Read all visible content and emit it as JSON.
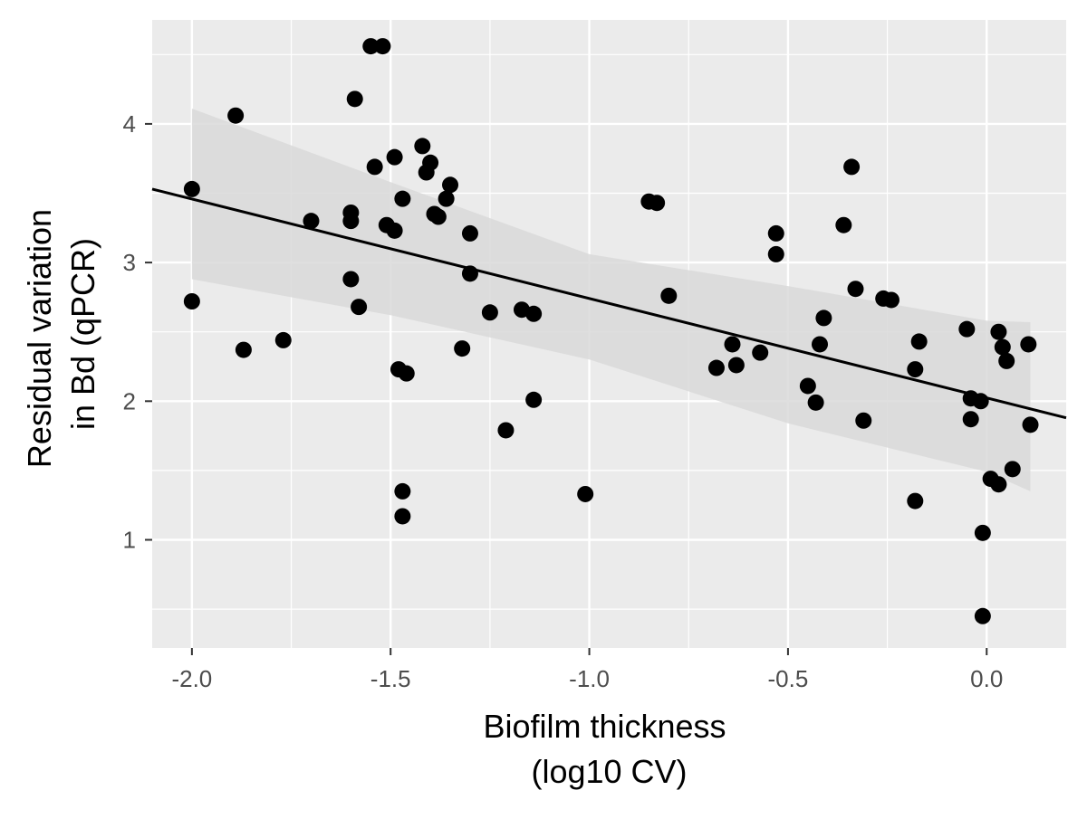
{
  "chart_data": {
    "type": "scatter",
    "xlabel_lines": [
      "Biofilm thickness",
      "(log10 CV)"
    ],
    "ylabel_lines": [
      "Residual variation",
      "in Bd (qPCR)"
    ],
    "xlim": [
      -2.1,
      0.2
    ],
    "ylim": [
      0.22,
      4.75
    ],
    "x_ticks": [
      {
        "value": -2.0,
        "label": "-2.0"
      },
      {
        "value": -1.5,
        "label": "-1.5"
      },
      {
        "value": -1.0,
        "label": "-1.0"
      },
      {
        "value": -0.5,
        "label": "-0.5"
      },
      {
        "value": 0.0,
        "label": "0.0"
      }
    ],
    "y_ticks": [
      {
        "value": 1,
        "label": "1"
      },
      {
        "value": 2,
        "label": "2"
      },
      {
        "value": 3,
        "label": "3"
      },
      {
        "value": 4,
        "label": "4"
      }
    ],
    "grid": true,
    "background_color": "#ebebeb",
    "grid_color": "#ffffff",
    "point_color": "#000000",
    "ribbon_color": "#d9d9d9",
    "line_color": "#000000",
    "points": [
      {
        "x": -2.0,
        "y": 3.53
      },
      {
        "x": -2.0,
        "y": 2.72
      },
      {
        "x": -1.89,
        "y": 4.06
      },
      {
        "x": -1.87,
        "y": 2.37
      },
      {
        "x": -1.77,
        "y": 2.44
      },
      {
        "x": -1.7,
        "y": 3.3
      },
      {
        "x": -1.6,
        "y": 3.36
      },
      {
        "x": -1.6,
        "y": 3.3
      },
      {
        "x": -1.6,
        "y": 2.88
      },
      {
        "x": -1.59,
        "y": 4.18
      },
      {
        "x": -1.58,
        "y": 2.68
      },
      {
        "x": -1.55,
        "y": 4.56
      },
      {
        "x": -1.54,
        "y": 3.69
      },
      {
        "x": -1.52,
        "y": 4.56
      },
      {
        "x": -1.51,
        "y": 3.27
      },
      {
        "x": -1.49,
        "y": 3.76
      },
      {
        "x": -1.49,
        "y": 3.23
      },
      {
        "x": -1.48,
        "y": 2.23
      },
      {
        "x": -1.47,
        "y": 3.46
      },
      {
        "x": -1.47,
        "y": 1.35
      },
      {
        "x": -1.47,
        "y": 1.17
      },
      {
        "x": -1.46,
        "y": 2.2
      },
      {
        "x": -1.42,
        "y": 3.84
      },
      {
        "x": -1.41,
        "y": 3.65
      },
      {
        "x": -1.4,
        "y": 3.72
      },
      {
        "x": -1.39,
        "y": 3.35
      },
      {
        "x": -1.38,
        "y": 3.33
      },
      {
        "x": -1.36,
        "y": 3.46
      },
      {
        "x": -1.35,
        "y": 3.56
      },
      {
        "x": -1.32,
        "y": 2.38
      },
      {
        "x": -1.3,
        "y": 3.21
      },
      {
        "x": -1.3,
        "y": 2.92
      },
      {
        "x": -1.25,
        "y": 2.64
      },
      {
        "x": -1.21,
        "y": 1.79
      },
      {
        "x": -1.17,
        "y": 2.66
      },
      {
        "x": -1.14,
        "y": 2.63
      },
      {
        "x": -1.14,
        "y": 2.01
      },
      {
        "x": -1.01,
        "y": 1.33
      },
      {
        "x": -0.85,
        "y": 3.44
      },
      {
        "x": -0.83,
        "y": 3.43
      },
      {
        "x": -0.8,
        "y": 2.76
      },
      {
        "x": -0.68,
        "y": 2.24
      },
      {
        "x": -0.64,
        "y": 2.41
      },
      {
        "x": -0.63,
        "y": 2.26
      },
      {
        "x": -0.57,
        "y": 2.35
      },
      {
        "x": -0.53,
        "y": 3.21
      },
      {
        "x": -0.53,
        "y": 3.06
      },
      {
        "x": -0.45,
        "y": 2.11
      },
      {
        "x": -0.43,
        "y": 1.99
      },
      {
        "x": -0.42,
        "y": 2.41
      },
      {
        "x": -0.41,
        "y": 2.6
      },
      {
        "x": -0.36,
        "y": 3.27
      },
      {
        "x": -0.34,
        "y": 3.69
      },
      {
        "x": -0.33,
        "y": 2.81
      },
      {
        "x": -0.31,
        "y": 1.86
      },
      {
        "x": -0.26,
        "y": 2.74
      },
      {
        "x": -0.24,
        "y": 2.73
      },
      {
        "x": -0.18,
        "y": 2.23
      },
      {
        "x": -0.18,
        "y": 1.28
      },
      {
        "x": -0.17,
        "y": 2.43
      },
      {
        "x": -0.05,
        "y": 2.52
      },
      {
        "x": -0.04,
        "y": 2.02
      },
      {
        "x": -0.04,
        "y": 1.87
      },
      {
        "x": -0.015,
        "y": 2.0
      },
      {
        "x": -0.01,
        "y": 1.05
      },
      {
        "x": -0.01,
        "y": 0.45
      },
      {
        "x": 0.01,
        "y": 1.44
      },
      {
        "x": 0.03,
        "y": 2.5
      },
      {
        "x": 0.03,
        "y": 1.4
      },
      {
        "x": 0.04,
        "y": 2.39
      },
      {
        "x": 0.05,
        "y": 2.29
      },
      {
        "x": 0.065,
        "y": 1.51
      },
      {
        "x": 0.105,
        "y": 2.41
      },
      {
        "x": 0.11,
        "y": 1.83
      }
    ],
    "fit_line": {
      "x": [
        -2.1,
        0.2
      ],
      "y": [
        3.53,
        1.88
      ]
    },
    "confidence_band": {
      "x": [
        -2.0,
        -1.5,
        -1.0,
        -0.5,
        0.0,
        0.11
      ],
      "upper": [
        4.11,
        3.58,
        3.06,
        2.83,
        2.58,
        2.57
      ],
      "lower": [
        2.88,
        2.62,
        2.3,
        1.84,
        1.49,
        1.35
      ]
    }
  }
}
